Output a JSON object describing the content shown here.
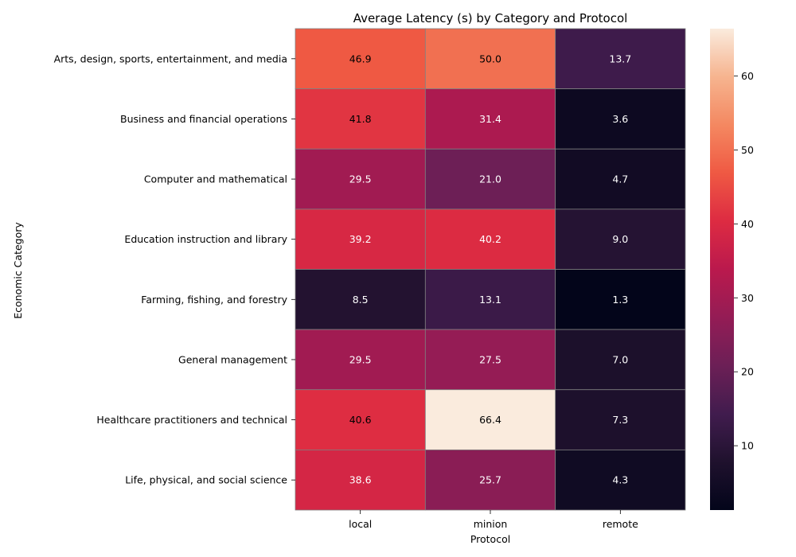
{
  "chart_data": {
    "type": "heatmap",
    "title": "Average Latency (s) by Category and Protocol",
    "xlabel": "Protocol",
    "ylabel": "Economic Category",
    "x_categories": [
      "local",
      "minion",
      "remote"
    ],
    "y_categories": [
      "Arts, design, sports, entertainment, and media",
      "Business and financial operations",
      "Computer and mathematical",
      "Education instruction and library",
      "Farming, fishing, and forestry",
      "General management",
      "Healthcare practitioners and technical",
      "Life, physical, and social science"
    ],
    "values": [
      [
        46.9,
        50.0,
        13.7
      ],
      [
        41.8,
        31.4,
        3.6
      ],
      [
        29.5,
        21.0,
        4.7
      ],
      [
        39.2,
        40.2,
        9.0
      ],
      [
        8.5,
        13.1,
        1.3
      ],
      [
        29.5,
        27.5,
        7.0
      ],
      [
        40.6,
        66.4,
        7.3
      ],
      [
        38.6,
        25.7,
        4.3
      ]
    ],
    "colorbar": {
      "min": 1.3,
      "max": 66.4,
      "ticks": [
        10,
        20,
        30,
        40,
        50,
        60
      ],
      "colormap": "rocket"
    },
    "annotations": true,
    "grid": false,
    "cell_border_color": "#808080"
  }
}
